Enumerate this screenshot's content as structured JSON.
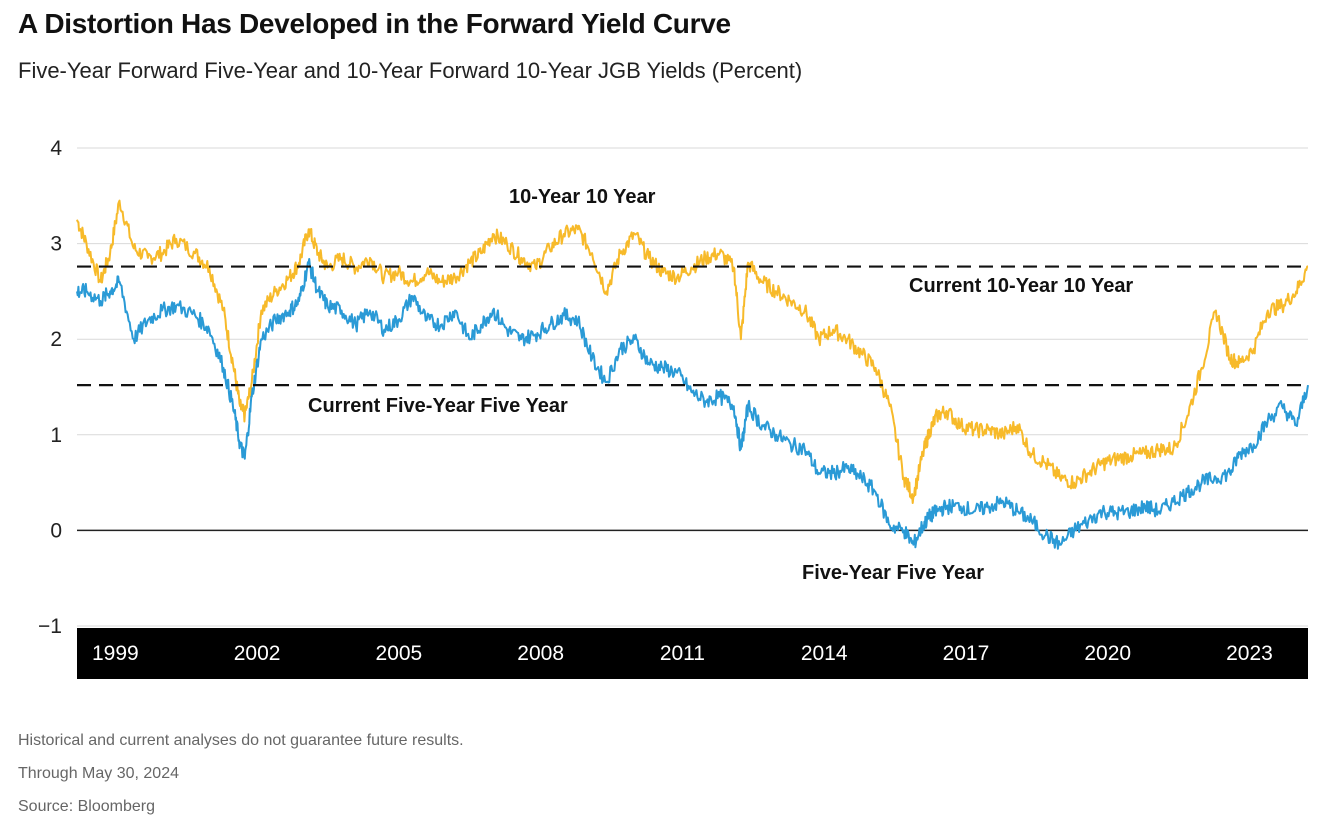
{
  "title": "A Distortion Has Developed in the Forward Yield Curve",
  "subtitle": "Five-Year Forward Five-Year and 10-Year Forward 10-Year JGB Yields (Percent)",
  "notes": {
    "disclaimer": "Historical and current analyses do not guarantee future results.",
    "through": "Through May 30, 2024",
    "source": "Source: Bloomberg"
  },
  "chart_data": {
    "type": "line",
    "xlim": [
      1998.4,
      2024.45
    ],
    "ylim": [
      -1,
      4
    ],
    "yticks": [
      4,
      3,
      2,
      1,
      0,
      -1
    ],
    "ytick_labels": [
      "4",
      "3",
      "2",
      "1",
      "0",
      "−1"
    ],
    "xticks": [
      1999,
      2002,
      2005,
      2008,
      2011,
      2014,
      2017,
      2020,
      2023
    ],
    "xtick_labels": [
      "1999",
      "2002",
      "2005",
      "2008",
      "2011",
      "2014",
      "2017",
      "2020",
      "2023"
    ],
    "grid": true,
    "colors": {
      "ten_year": "#F7BA2A",
      "five_year": "#2A9AD6",
      "axis_band": "#000000",
      "grid": "#d9d9d9"
    },
    "reference_lines": [
      {
        "label": "Current 10-Year 10 Year",
        "y": 2.76
      },
      {
        "label": "Current Five-Year Five Year",
        "y": 1.52
      }
    ],
    "series_labels": {
      "ten_year": "10-Year 10 Year",
      "five_year": "Five-Year Five Year"
    },
    "series": [
      {
        "key": "ten_year",
        "x": [
          1998.4,
          1998.6,
          1998.9,
          1999.1,
          1999.3,
          1999.6,
          1999.9,
          2000.2,
          2000.5,
          2000.9,
          2001.2,
          2001.5,
          2001.7,
          2001.85,
          2001.95,
          2002.1,
          2002.3,
          2002.6,
          2002.9,
          2003.1,
          2003.3,
          2003.5,
          2003.7,
          2004.0,
          2004.3,
          2004.6,
          2004.9,
          2005.2,
          2005.5,
          2005.8,
          2006.1,
          2006.4,
          2006.7,
          2006.95,
          2007.2,
          2007.5,
          2007.8,
          2008.1,
          2008.4,
          2008.7,
          2009.0,
          2009.3,
          2009.6,
          2009.9,
          2010.2,
          2010.5,
          2010.8,
          2011.1,
          2011.4,
          2011.7,
          2012.0,
          2012.3,
          2012.45,
          2012.6,
          2012.9,
          2013.2,
          2013.5,
          2013.8,
          2014.1,
          2014.4,
          2014.7,
          2015.0,
          2015.3,
          2015.6,
          2015.9,
          2016.1,
          2016.3,
          2016.45,
          2016.6,
          2016.8,
          2017.1,
          2017.4,
          2017.7,
          2018.0,
          2018.3,
          2018.6,
          2018.9,
          2019.2,
          2019.5,
          2019.8,
          2020.1,
          2020.4,
          2020.7,
          2021.0,
          2021.3,
          2021.6,
          2021.9,
          2022.2,
          2022.5,
          2022.8,
          2023.0,
          2023.3,
          2023.6,
          2023.9,
          2024.2,
          2024.45
        ],
        "values": [
          3.25,
          3.0,
          2.6,
          2.9,
          3.45,
          2.95,
          2.85,
          2.9,
          3.05,
          2.9,
          2.75,
          2.3,
          1.75,
          1.3,
          1.2,
          1.55,
          2.3,
          2.5,
          2.65,
          2.8,
          3.15,
          2.9,
          2.75,
          2.85,
          2.75,
          2.85,
          2.65,
          2.7,
          2.6,
          2.7,
          2.6,
          2.65,
          2.8,
          2.9,
          3.1,
          3.0,
          2.85,
          2.75,
          2.95,
          3.1,
          3.15,
          2.9,
          2.5,
          2.9,
          3.1,
          2.85,
          2.7,
          2.65,
          2.75,
          2.85,
          2.9,
          2.75,
          2.0,
          2.8,
          2.6,
          2.5,
          2.4,
          2.3,
          2.0,
          2.1,
          2.0,
          1.85,
          1.7,
          1.3,
          0.55,
          0.35,
          0.8,
          1.05,
          1.2,
          1.25,
          1.1,
          1.05,
          1.05,
          1.0,
          1.1,
          0.8,
          0.7,
          0.55,
          0.5,
          0.6,
          0.7,
          0.75,
          0.78,
          0.8,
          0.85,
          0.85,
          1.2,
          1.7,
          2.3,
          1.8,
          1.75,
          1.9,
          2.3,
          2.35,
          2.5,
          2.76
        ]
      },
      {
        "key": "five_year",
        "x": [
          1998.4,
          1998.6,
          1998.9,
          1999.1,
          1999.3,
          1999.6,
          1999.9,
          2000.2,
          2000.5,
          2000.9,
          2001.2,
          2001.5,
          2001.7,
          2001.85,
          2001.95,
          2002.1,
          2002.3,
          2002.6,
          2002.9,
          2003.1,
          2003.3,
          2003.5,
          2003.7,
          2004.0,
          2004.3,
          2004.6,
          2004.9,
          2005.2,
          2005.5,
          2005.8,
          2006.1,
          2006.4,
          2006.7,
          2006.95,
          2007.2,
          2007.5,
          2007.8,
          2008.1,
          2008.4,
          2008.7,
          2009.0,
          2009.3,
          2009.6,
          2009.9,
          2010.2,
          2010.5,
          2010.8,
          2011.1,
          2011.4,
          2011.7,
          2012.0,
          2012.3,
          2012.45,
          2012.6,
          2012.9,
          2013.2,
          2013.5,
          2013.8,
          2014.1,
          2014.4,
          2014.7,
          2015.0,
          2015.3,
          2015.6,
          2015.9,
          2016.1,
          2016.3,
          2016.45,
          2016.6,
          2016.8,
          2017.1,
          2017.4,
          2017.7,
          2018.0,
          2018.3,
          2018.6,
          2018.9,
          2019.2,
          2019.5,
          2019.8,
          2020.1,
          2020.4,
          2020.7,
          2021.0,
          2021.3,
          2021.6,
          2021.9,
          2022.2,
          2022.5,
          2022.8,
          2023.0,
          2023.3,
          2023.6,
          2023.9,
          2024.2,
          2024.45
        ],
        "values": [
          2.5,
          2.5,
          2.4,
          2.5,
          2.6,
          2.0,
          2.2,
          2.3,
          2.35,
          2.25,
          2.1,
          1.7,
          1.3,
          0.9,
          0.75,
          1.4,
          2.0,
          2.2,
          2.3,
          2.4,
          2.8,
          2.5,
          2.35,
          2.3,
          2.15,
          2.3,
          2.1,
          2.2,
          2.45,
          2.2,
          2.15,
          2.3,
          2.0,
          2.15,
          2.3,
          2.1,
          2.0,
          2.05,
          2.15,
          2.25,
          2.2,
          1.8,
          1.55,
          1.9,
          2.0,
          1.75,
          1.7,
          1.65,
          1.45,
          1.35,
          1.4,
          1.3,
          0.85,
          1.3,
          1.1,
          1.0,
          0.9,
          0.85,
          0.6,
          0.6,
          0.65,
          0.55,
          0.4,
          0.05,
          0.0,
          -0.15,
          0.05,
          0.15,
          0.2,
          0.25,
          0.25,
          0.2,
          0.25,
          0.3,
          0.2,
          0.1,
          -0.05,
          -0.15,
          0.0,
          0.1,
          0.2,
          0.18,
          0.2,
          0.25,
          0.2,
          0.3,
          0.4,
          0.5,
          0.55,
          0.6,
          0.8,
          0.9,
          1.15,
          1.3,
          1.1,
          1.52
        ]
      }
    ]
  }
}
